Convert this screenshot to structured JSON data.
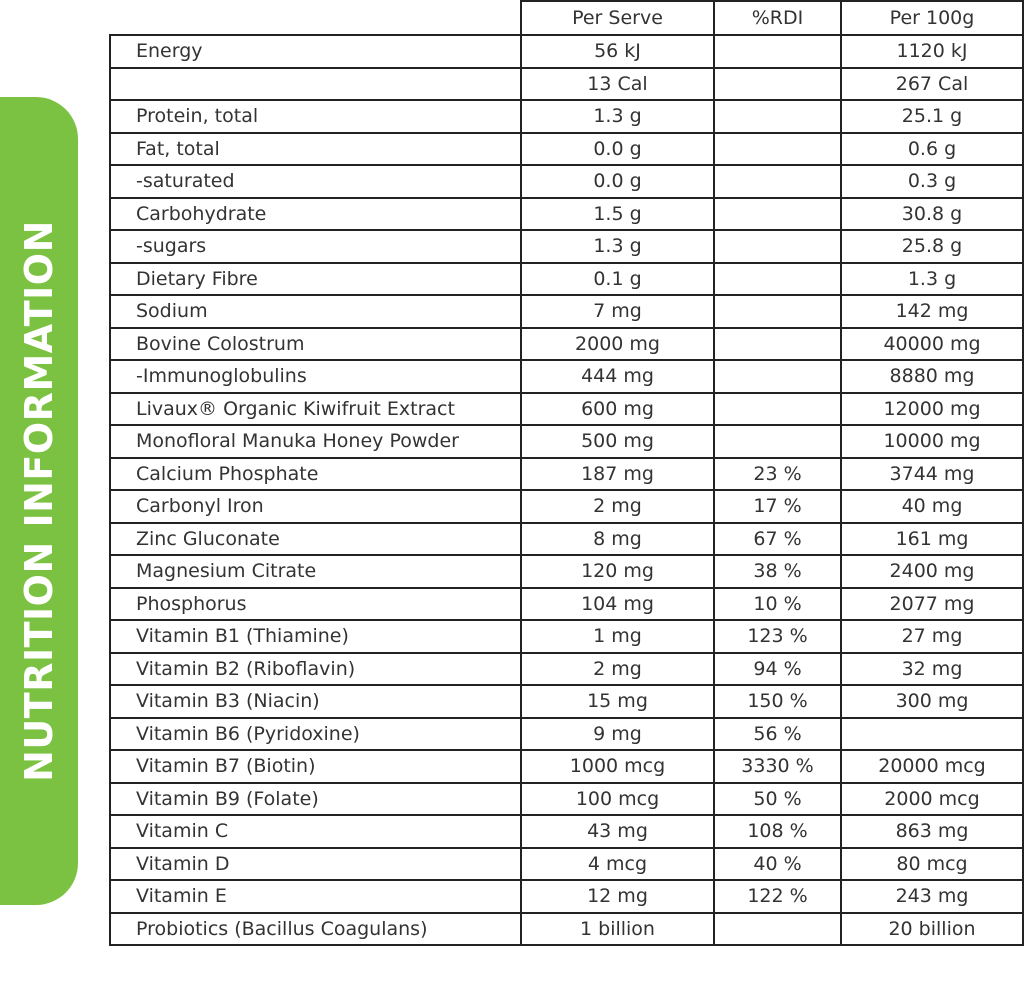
{
  "side_title": "NUTRITION INFORMATION",
  "table": {
    "header": [
      null,
      "Per Serve",
      "%RDI",
      "Per 100g"
    ],
    "rows": [
      [
        "Energy",
        "56 kJ",
        null,
        "1120 kJ"
      ],
      [
        null,
        "13 Cal",
        null,
        "267 Cal"
      ],
      [
        "Protein, total",
        "1.3 g",
        null,
        "25.1 g"
      ],
      [
        "Fat, total",
        "0.0 g",
        null,
        "0.6 g"
      ],
      [
        "-saturated",
        "0.0 g",
        null,
        "0.3 g"
      ],
      [
        "Carbohydrate",
        "1.5 g",
        null,
        "30.8 g"
      ],
      [
        "-sugars",
        "1.3 g",
        null,
        "25.8 g"
      ],
      [
        "Dietary Fibre",
        "0.1 g",
        null,
        "1.3 g"
      ],
      [
        "Sodium",
        "7 mg",
        null,
        "142 mg"
      ],
      [
        "Bovine Colostrum",
        "2000 mg",
        null,
        "40000 mg"
      ],
      [
        "-Immunoglobulins",
        "444 mg",
        null,
        "8880 mg"
      ],
      [
        "Livaux® Organic Kiwifruit Extract",
        "600 mg",
        null,
        "12000 mg"
      ],
      [
        "Monofloral Manuka Honey Powder",
        "500 mg",
        null,
        "10000 mg"
      ],
      [
        "Calcium Phosphate",
        "187 mg",
        "23 %",
        "3744 mg"
      ],
      [
        "Carbonyl Iron",
        "2 mg",
        "17 %",
        "40 mg"
      ],
      [
        "Zinc Gluconate",
        "8 mg",
        "67 %",
        "161 mg"
      ],
      [
        "Magnesium Citrate",
        "120 mg",
        "38 %",
        "2400 mg"
      ],
      [
        "Phosphorus",
        "104 mg",
        "10 %",
        "2077 mg"
      ],
      [
        "Vitamin B1 (Thiamine)",
        "1 mg",
        "123 %",
        "27 mg"
      ],
      [
        "Vitamin B2 (Riboflavin)",
        "2 mg",
        "94 %",
        "32 mg"
      ],
      [
        "Vitamin B3 (Niacin)",
        "15 mg",
        "150 %",
        "300 mg"
      ],
      [
        "Vitamin B6 (Pyridoxine)",
        "9 mg",
        "56 %",
        null
      ],
      [
        "Vitamin B7 (Biotin)",
        "1000 mcg",
        "3330 %",
        "20000 mcg"
      ],
      [
        "Vitamin B9 (Folate)",
        "100 mcg",
        "50 %",
        "2000 mcg"
      ],
      [
        "Vitamin C",
        "43 mg",
        "108 %",
        "863 mg"
      ],
      [
        "Vitamin D",
        "4 mcg",
        "40 %",
        "80 mcg"
      ],
      [
        "Vitamin E",
        "12 mg",
        "122 %",
        "243 mg"
      ],
      [
        "Probiotics (Bacillus Coagulans)",
        "1 billion",
        null,
        "20 billion"
      ]
    ]
  }
}
